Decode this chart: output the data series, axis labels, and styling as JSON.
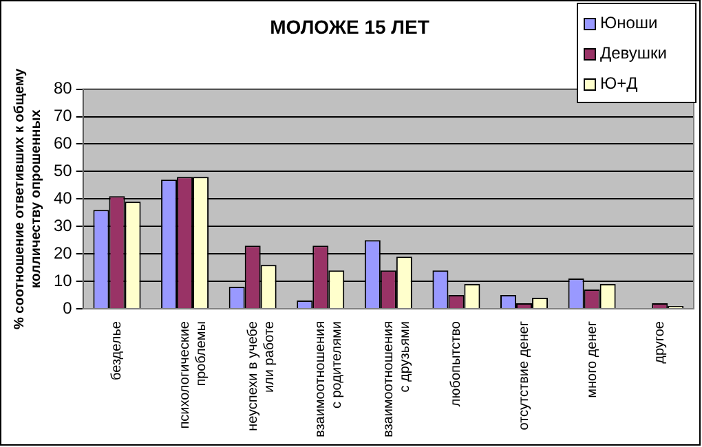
{
  "chart_data": {
    "type": "bar",
    "title": "МОЛОЖЕ 15 ЛЕТ",
    "ylabel": "% соотношение ответивших к общему\nколличеству опрошенных",
    "categories": [
      "безделье",
      "психологические\nпроблемы",
      "неуспехи в учебе\nили работе",
      "взаимоотношения\nс родителями",
      "взаимоотношения\nс друзьями",
      "любопытство",
      "отсутствие денег",
      "много денег",
      "другое"
    ],
    "series": [
      {
        "name": "Юноши",
        "color": "#9999ff",
        "values": [
          36,
          47,
          8,
          3,
          25,
          14,
          5,
          11,
          0
        ]
      },
      {
        "name": "Девушки",
        "color": "#993366",
        "values": [
          41,
          48,
          23,
          23,
          14,
          5,
          2,
          7,
          2
        ]
      },
      {
        "name": "Ю+Д",
        "color": "#ffffcc",
        "values": [
          39,
          48,
          16,
          14,
          19,
          9,
          4,
          9,
          1
        ]
      }
    ],
    "ylim": [
      0,
      80
    ],
    "yticks": [
      0,
      10,
      20,
      30,
      40,
      50,
      60,
      70,
      80
    ],
    "grid": "y",
    "legend": "top right"
  }
}
